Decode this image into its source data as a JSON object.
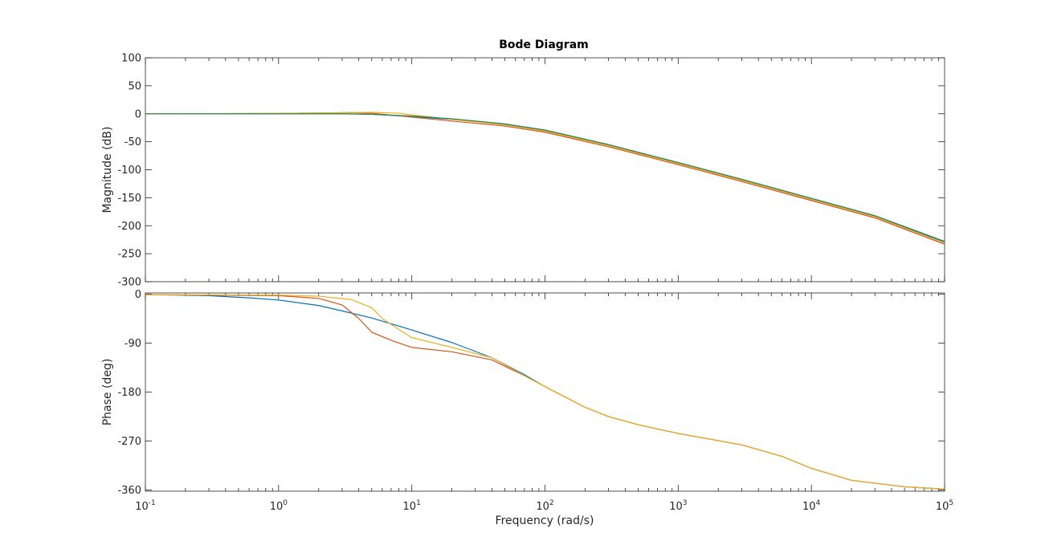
{
  "chart_data": {
    "type": "line",
    "title": "Bode Diagram",
    "xlabel": "Frequency  (rad/s)",
    "x_scale": "log",
    "xlim": [
      0.1,
      100000
    ],
    "x_tick_labels": [
      "10",
      "10",
      "10",
      "10",
      "10",
      "10",
      "10"
    ],
    "x_tick_exponents": [
      "-1",
      "0",
      "1",
      "2",
      "3",
      "4",
      "5"
    ],
    "grid": false,
    "line_colors": [
      "#0072BD",
      "#D95319",
      "#EDB120",
      "#2E8B57"
    ],
    "panels": [
      {
        "id": "magnitude",
        "ylabel": "Magnitude (dB)",
        "ylim": [
          -300,
          100
        ],
        "y_ticks": [
          100,
          50,
          0,
          -50,
          -100,
          -150,
          -200,
          -250,
          -300
        ],
        "y_tick_labels": [
          "100",
          "50",
          "0",
          "-50",
          "-100",
          "-150",
          "-200",
          "-250",
          "-300"
        ],
        "series": [
          {
            "color": "#0072BD",
            "points": [
              [
                0.1,
                0
              ],
              [
                1,
                0
              ],
              [
                3,
                0
              ],
              [
                5,
                -1
              ],
              [
                10,
                -5
              ],
              [
                20,
                -10
              ],
              [
                50,
                -19
              ],
              [
                100,
                -30
              ],
              [
                300,
                -56
              ],
              [
                1000,
                -88
              ],
              [
                3000,
                -118
              ],
              [
                10000,
                -152
              ],
              [
                30000,
                -183
              ],
              [
                100000,
                -229
              ]
            ]
          },
          {
            "color": "#D95319",
            "points": [
              [
                0.1,
                0
              ],
              [
                1,
                0.5
              ],
              [
                2,
                1.5
              ],
              [
                3.5,
                2
              ],
              [
                5,
                1
              ],
              [
                10,
                -6
              ],
              [
                20,
                -13
              ],
              [
                50,
                -22
              ],
              [
                100,
                -33
              ],
              [
                300,
                -59
              ],
              [
                1000,
                -91
              ],
              [
                3000,
                -121
              ],
              [
                10000,
                -155
              ],
              [
                30000,
                -186
              ],
              [
                100000,
                -233
              ]
            ]
          },
          {
            "color": "#EDB120",
            "points": [
              [
                0.1,
                0
              ],
              [
                1,
                0.5
              ],
              [
                3,
                2
              ],
              [
                5,
                2.5
              ],
              [
                8,
                1
              ],
              [
                10,
                -2
              ],
              [
                20,
                -10
              ],
              [
                50,
                -20
              ],
              [
                100,
                -31
              ],
              [
                300,
                -57
              ],
              [
                1000,
                -89
              ],
              [
                3000,
                -119
              ],
              [
                10000,
                -153
              ],
              [
                30000,
                -184
              ],
              [
                100000,
                -231
              ]
            ]
          },
          {
            "color": "#2E8B57",
            "points": [
              [
                0.1,
                0
              ],
              [
                1,
                0
              ],
              [
                3,
                0
              ],
              [
                5,
                -1
              ],
              [
                10,
                -4
              ],
              [
                20,
                -9
              ],
              [
                50,
                -18
              ],
              [
                100,
                -29
              ],
              [
                300,
                -55
              ],
              [
                1000,
                -87
              ],
              [
                3000,
                -117
              ],
              [
                10000,
                -151
              ],
              [
                30000,
                -182
              ],
              [
                100000,
                -228
              ]
            ]
          }
        ]
      },
      {
        "id": "phase",
        "ylabel": "Phase (deg)",
        "ylim": [
          -362,
          2
        ],
        "y_ticks": [
          0,
          -90,
          -180,
          -270,
          -360
        ],
        "y_tick_labels": [
          "0",
          "-90",
          "-180",
          "-270",
          "-360"
        ],
        "series": [
          {
            "color": "#0072BD",
            "points": [
              [
                0.1,
                -1
              ],
              [
                0.3,
                -3
              ],
              [
                0.6,
                -7
              ],
              [
                1,
                -11
              ],
              [
                2,
                -21
              ],
              [
                3,
                -31
              ],
              [
                5,
                -44
              ],
              [
                10,
                -66
              ],
              [
                20,
                -89
              ],
              [
                40,
                -117
              ],
              [
                70,
                -148
              ],
              [
                100,
                -170
              ],
              [
                200,
                -208
              ],
              [
                300,
                -225
              ],
              [
                500,
                -240
              ],
              [
                1000,
                -256
              ],
              [
                3000,
                -277
              ],
              [
                6000,
                -298
              ],
              [
                10000,
                -320
              ],
              [
                20000,
                -342
              ],
              [
                50000,
                -354
              ],
              [
                100000,
                -358
              ]
            ]
          },
          {
            "color": "#D95319",
            "points": [
              [
                0.1,
                -1
              ],
              [
                1,
                -3
              ],
              [
                2,
                -8
              ],
              [
                3,
                -20
              ],
              [
                4,
                -45
              ],
              [
                5,
                -70
              ],
              [
                7,
                -85
              ],
              [
                10,
                -98
              ],
              [
                20,
                -106
              ],
              [
                40,
                -121
              ],
              [
                70,
                -150
              ],
              [
                100,
                -170
              ],
              [
                200,
                -208
              ],
              [
                300,
                -225
              ],
              [
                500,
                -240
              ],
              [
                1000,
                -256
              ],
              [
                3000,
                -277
              ],
              [
                6000,
                -298
              ],
              [
                10000,
                -320
              ],
              [
                20000,
                -342
              ],
              [
                50000,
                -354
              ],
              [
                100000,
                -358
              ]
            ]
          },
          {
            "color": "#EDB120",
            "points": [
              [
                0.1,
                -1
              ],
              [
                1,
                -2
              ],
              [
                2,
                -4
              ],
              [
                3.5,
                -10
              ],
              [
                5,
                -25
              ],
              [
                6,
                -45
              ],
              [
                8,
                -65
              ],
              [
                10,
                -80
              ],
              [
                20,
                -98
              ],
              [
                40,
                -117
              ],
              [
                70,
                -150
              ],
              [
                100,
                -170
              ],
              [
                200,
                -208
              ],
              [
                300,
                -225
              ],
              [
                500,
                -240
              ],
              [
                1000,
                -256
              ],
              [
                3000,
                -277
              ],
              [
                6000,
                -298
              ],
              [
                10000,
                -320
              ],
              [
                20000,
                -342
              ],
              [
                50000,
                -354
              ],
              [
                100000,
                -358
              ]
            ]
          }
        ]
      }
    ]
  }
}
